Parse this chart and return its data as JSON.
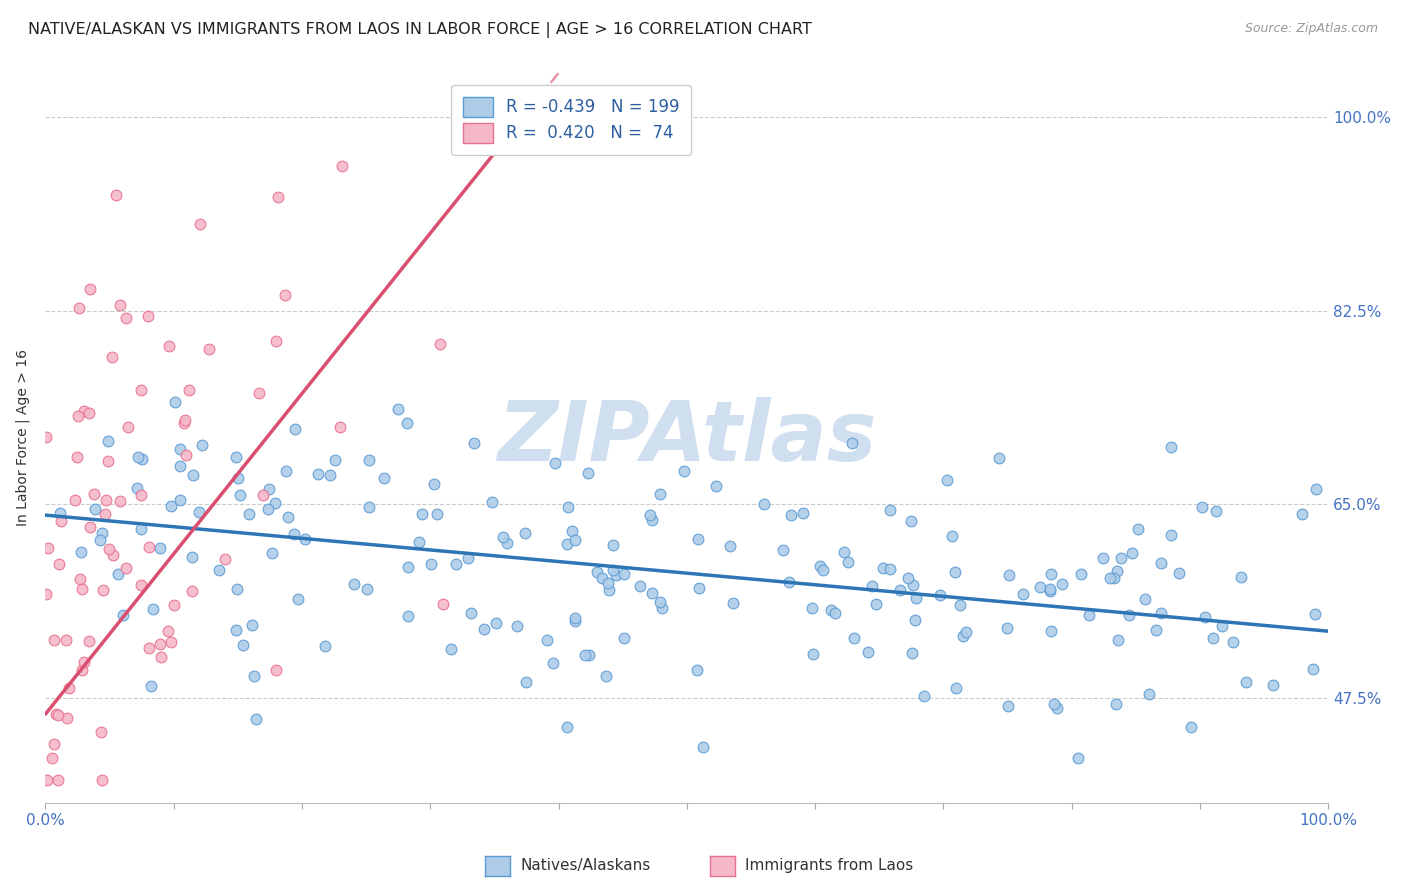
{
  "title": "NATIVE/ALASKAN VS IMMIGRANTS FROM LAOS IN LABOR FORCE | AGE > 16 CORRELATION CHART",
  "source_text": "Source: ZipAtlas.com",
  "ylabel": "In Labor Force | Age > 16",
  "x_min": 0.0,
  "x_max": 1.0,
  "y_min": 0.38,
  "y_max": 1.04,
  "y_ticks": [
    0.475,
    0.65,
    0.825,
    1.0
  ],
  "y_tick_labels": [
    "47.5%",
    "65.0%",
    "82.5%",
    "100.0%"
  ],
  "blue_R": -0.439,
  "blue_N": 199,
  "pink_R": 0.42,
  "pink_N": 74,
  "blue_color": "#aecce8",
  "blue_edge_color": "#5b9bd5",
  "blue_line_color": "#2e75b6",
  "pink_color": "#f4b8c8",
  "pink_edge_color": "#e87090",
  "pink_line_color": "#d94f70",
  "background_color": "#ffffff",
  "grid_color": "#cccccc",
  "watermark_color": "#d0dff0",
  "tick_label_color_right": "#4472c4",
  "title_fontsize": 11.5,
  "blue_trend_x0": 0.0,
  "blue_trend_y0": 0.64,
  "blue_trend_x1": 1.0,
  "blue_trend_y1": 0.535,
  "pink_trend_x0": 0.0,
  "pink_trend_y0": 0.46,
  "pink_trend_x1": 0.4,
  "pink_trend_y1": 1.04,
  "legend_blue_label": "R = -0.439   N = 199",
  "legend_pink_label": "R =  0.420   N =  74",
  "bottom_label_blue": "Natives/Alaskans",
  "bottom_label_pink": "Immigrants from Laos"
}
